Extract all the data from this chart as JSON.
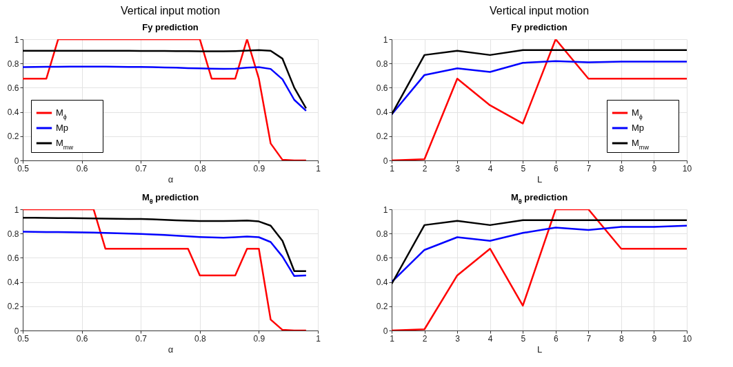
{
  "chart_data": [
    {
      "type": "line",
      "title": "Vertical input motion",
      "subtitle": "Fy prediction",
      "xlabel": "α",
      "x": [
        0.5,
        0.52,
        0.54,
        0.56,
        0.58,
        0.6,
        0.62,
        0.64,
        0.66,
        0.68,
        0.7,
        0.72,
        0.74,
        0.76,
        0.78,
        0.8,
        0.82,
        0.84,
        0.86,
        0.88,
        0.9,
        0.92,
        0.94,
        0.96,
        0.98
      ],
      "xlim": [
        0.5,
        1
      ],
      "xticks": [
        0.5,
        0.6,
        0.7,
        0.8,
        0.9,
        1
      ],
      "ylim": [
        0,
        1
      ],
      "yticks": [
        0,
        0.2,
        0.4,
        0.6,
        0.8,
        1
      ],
      "grid": true,
      "legend": "bottom left",
      "line_style": "solid",
      "series": [
        {
          "name": "M$_{ϕ}$",
          "color": "#ff0000",
          "values": [
            0.675,
            0.675,
            0.675,
            1,
            1,
            1,
            1,
            1,
            1,
            1,
            1,
            1,
            1,
            1,
            1,
            1,
            0.675,
            0.675,
            0.675,
            1,
            0.675,
            0.14,
            0.005,
            0,
            0
          ]
        },
        {
          "name": "Mp",
          "color": "#0000ff",
          "values": [
            0.77,
            0.772,
            0.773,
            0.773,
            0.774,
            0.774,
            0.774,
            0.774,
            0.773,
            0.772,
            0.771,
            0.77,
            0.767,
            0.765,
            0.762,
            0.76,
            0.757,
            0.755,
            0.757,
            0.765,
            0.77,
            0.755,
            0.67,
            0.5,
            0.41
          ]
        },
        {
          "name": "M$_{mw}$",
          "color": "#000000",
          "values": [
            0.905,
            0.905,
            0.905,
            0.905,
            0.905,
            0.905,
            0.905,
            0.905,
            0.905,
            0.905,
            0.904,
            0.904,
            0.903,
            0.902,
            0.902,
            0.901,
            0.9,
            0.9,
            0.902,
            0.906,
            0.91,
            0.905,
            0.84,
            0.6,
            0.43
          ]
        }
      ]
    },
    {
      "type": "line",
      "title": "Vertical input motion",
      "subtitle": "Fy prediction",
      "xlabel": "L",
      "x": [
        1,
        2,
        3,
        4,
        5,
        6,
        7,
        8,
        9,
        10
      ],
      "xlim": [
        1,
        10
      ],
      "xticks": [
        1,
        2,
        3,
        4,
        5,
        6,
        7,
        8,
        9,
        10
      ],
      "ylim": [
        0,
        1
      ],
      "yticks": [
        0,
        0.2,
        0.4,
        0.6,
        0.8,
        1
      ],
      "grid": true,
      "legend": "bottom right",
      "line_style": "solid",
      "series": [
        {
          "name": "M$_{ϕ}$",
          "color": "#ff0000",
          "values": [
            0,
            0.01,
            0.675,
            0.455,
            0.305,
            1,
            0.675,
            0.675,
            0.675,
            0.675
          ]
        },
        {
          "name": "Mp",
          "color": "#0000ff",
          "values": [
            0.38,
            0.705,
            0.76,
            0.73,
            0.805,
            0.82,
            0.81,
            0.815,
            0.815,
            0.815
          ]
        },
        {
          "name": "M$_{mw}$",
          "color": "#000000",
          "values": [
            0.38,
            0.87,
            0.905,
            0.87,
            0.91,
            0.91,
            0.91,
            0.91,
            0.91,
            0.91
          ]
        }
      ]
    },
    {
      "type": "line",
      "title": "M$_{θ}$ prediction",
      "xlabel": "α",
      "x": [
        0.5,
        0.52,
        0.54,
        0.56,
        0.58,
        0.6,
        0.62,
        0.64,
        0.66,
        0.68,
        0.7,
        0.72,
        0.74,
        0.76,
        0.78,
        0.8,
        0.82,
        0.84,
        0.86,
        0.88,
        0.9,
        0.92,
        0.94,
        0.96,
        0.98
      ],
      "xlim": [
        0.5,
        1
      ],
      "xticks": [
        0.5,
        0.6,
        0.7,
        0.8,
        0.9,
        1
      ],
      "ylim": [
        0,
        1
      ],
      "yticks": [
        0,
        0.2,
        0.4,
        0.6,
        0.8,
        1
      ],
      "grid": true,
      "line_style": "solid",
      "series": [
        {
          "color": "#ff0000",
          "values": [
            1,
            1,
            1,
            1,
            1,
            1,
            1,
            0.675,
            0.675,
            0.675,
            0.675,
            0.675,
            0.675,
            0.675,
            0.675,
            0.455,
            0.455,
            0.455,
            0.455,
            0.675,
            0.675,
            0.09,
            0.005,
            0,
            0
          ]
        },
        {
          "color": "#0000ff",
          "values": [
            0.815,
            0.814,
            0.813,
            0.812,
            0.811,
            0.81,
            0.808,
            0.806,
            0.803,
            0.8,
            0.797,
            0.793,
            0.788,
            0.783,
            0.777,
            0.772,
            0.768,
            0.766,
            0.77,
            0.775,
            0.77,
            0.73,
            0.61,
            0.45,
            0.455
          ]
        },
        {
          "color": "#000000",
          "values": [
            0.93,
            0.93,
            0.929,
            0.928,
            0.927,
            0.926,
            0.925,
            0.924,
            0.922,
            0.921,
            0.92,
            0.917,
            0.913,
            0.909,
            0.906,
            0.904,
            0.903,
            0.903,
            0.905,
            0.908,
            0.9,
            0.865,
            0.74,
            0.49,
            0.49
          ]
        }
      ]
    },
    {
      "type": "line",
      "title": "M$_{θ}$ prediction",
      "xlabel": "L",
      "x": [
        1,
        2,
        3,
        4,
        5,
        6,
        7,
        8,
        9,
        10
      ],
      "xlim": [
        1,
        10
      ],
      "xticks": [
        1,
        2,
        3,
        4,
        5,
        6,
        7,
        8,
        9,
        10
      ],
      "ylim": [
        0,
        1
      ],
      "yticks": [
        0,
        0.2,
        0.4,
        0.6,
        0.8,
        1
      ],
      "grid": true,
      "line_style": "solid",
      "series": [
        {
          "color": "#ff0000",
          "values": [
            0,
            0.01,
            0.455,
            0.675,
            0.205,
            1,
            1,
            0.675,
            0.675,
            0.675
          ]
        },
        {
          "color": "#0000ff",
          "values": [
            0.4,
            0.665,
            0.77,
            0.74,
            0.805,
            0.85,
            0.83,
            0.855,
            0.855,
            0.865
          ]
        },
        {
          "color": "#000000",
          "values": [
            0.385,
            0.87,
            0.905,
            0.87,
            0.91,
            0.91,
            0.91,
            0.91,
            0.91,
            0.91
          ]
        }
      ]
    }
  ]
}
